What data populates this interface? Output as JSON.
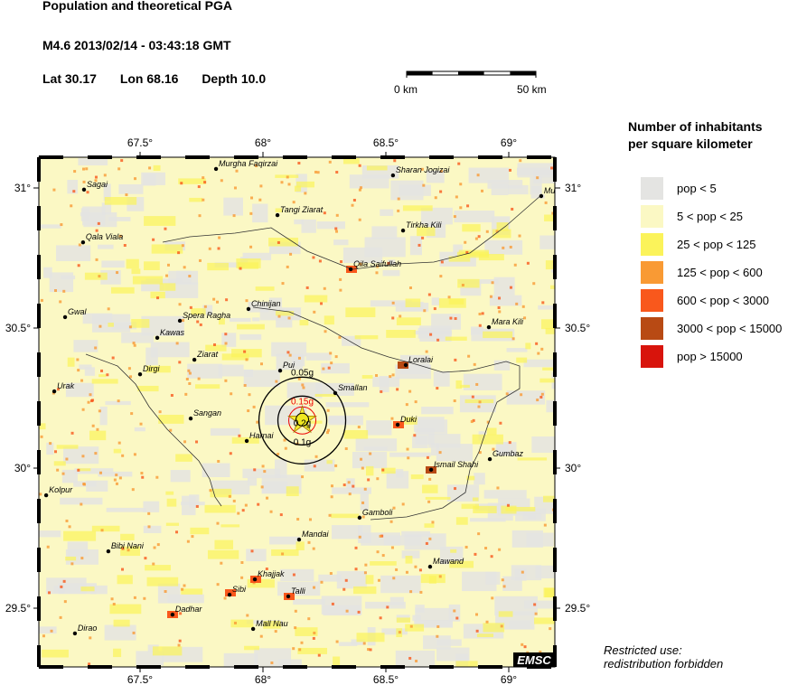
{
  "header": {
    "title": "Population and theoretical PGA",
    "event": "M4.6  2013/02/14 - 03:43:18 GMT",
    "lat": "Lat 30.17",
    "lon": "Lon  68.16",
    "depth": "Depth  10.0"
  },
  "scale_bar": {
    "start_label": "0 km",
    "end_label": "50 km"
  },
  "map": {
    "lon_ticks": [
      {
        "value": 67.5,
        "label": "67.5°"
      },
      {
        "value": 68,
        "label": "68°"
      },
      {
        "value": 68.5,
        "label": "68.5°"
      },
      {
        "value": 69,
        "label": "69°"
      }
    ],
    "lat_ticks": [
      {
        "value": 31,
        "label": "31°"
      },
      {
        "value": 30.5,
        "label": "30.5°"
      },
      {
        "value": 30,
        "label": "30°"
      },
      {
        "value": 29.5,
        "label": "29.5°"
      }
    ],
    "epicenter": {
      "lat": 30.17,
      "lon": 68.16
    },
    "pga_labels": [
      "0.05g",
      "0.1g",
      "0.15g",
      "0.2g"
    ],
    "cities": [
      {
        "name": "Murgha Faqirzai",
        "lon": 67.809,
        "lat": 31.068
      },
      {
        "name": "Sagai",
        "lon": 67.272,
        "lat": 30.994
      },
      {
        "name": "Sharan Jogizai",
        "lon": 68.529,
        "lat": 31.045
      },
      {
        "name": "Mu",
        "lon": 69.132,
        "lat": 30.971
      },
      {
        "name": "Tangi Ziarat",
        "lon": 68.059,
        "lat": 30.903
      },
      {
        "name": "Tirkha Kili",
        "lon": 68.57,
        "lat": 30.848
      },
      {
        "name": "Qala Viala",
        "lon": 67.268,
        "lat": 30.806
      },
      {
        "name": "Qila Saifullah",
        "lon": 68.357,
        "lat": 30.71
      },
      {
        "name": "Chinijan",
        "lon": 67.941,
        "lat": 30.568
      },
      {
        "name": "Gwal",
        "lon": 67.195,
        "lat": 30.539
      },
      {
        "name": "Spera Ragha",
        "lon": 67.662,
        "lat": 30.526
      },
      {
        "name": "Mara Kili",
        "lon": 68.919,
        "lat": 30.503
      },
      {
        "name": "Kawas",
        "lon": 67.57,
        "lat": 30.465
      },
      {
        "name": "Ziarat",
        "lon": 67.721,
        "lat": 30.387
      },
      {
        "name": "Loralai",
        "lon": 68.581,
        "lat": 30.368
      },
      {
        "name": "Pui",
        "lon": 68.07,
        "lat": 30.348
      },
      {
        "name": "Dirgi",
        "lon": 67.5,
        "lat": 30.335
      },
      {
        "name": "Smallan",
        "lon": 68.294,
        "lat": 30.268
      },
      {
        "name": "Urak",
        "lon": 67.151,
        "lat": 30.274
      },
      {
        "name": "Sangan",
        "lon": 67.706,
        "lat": 30.177
      },
      {
        "name": "Duki",
        "lon": 68.548,
        "lat": 30.155
      },
      {
        "name": "Harnai",
        "lon": 67.934,
        "lat": 30.097
      },
      {
        "name": "Gumbaz",
        "lon": 68.923,
        "lat": 30.032
      },
      {
        "name": "Ismail Shahi",
        "lon": 68.684,
        "lat": 29.994
      },
      {
        "name": "Kolpur",
        "lon": 67.118,
        "lat": 29.903
      },
      {
        "name": "Gamboli",
        "lon": 68.393,
        "lat": 29.823
      },
      {
        "name": "Mandai",
        "lon": 68.147,
        "lat": 29.745
      },
      {
        "name": "Bibi Nani",
        "lon": 67.371,
        "lat": 29.703
      },
      {
        "name": "Mawand",
        "lon": 68.68,
        "lat": 29.648
      },
      {
        "name": "Khajjak",
        "lon": 67.967,
        "lat": 29.603
      },
      {
        "name": "Sibi",
        "lon": 67.864,
        "lat": 29.548
      },
      {
        "name": "Talli",
        "lon": 68.103,
        "lat": 29.542
      },
      {
        "name": "Dadhar",
        "lon": 67.632,
        "lat": 29.477
      },
      {
        "name": "Mall Nau",
        "lon": 67.96,
        "lat": 29.426
      },
      {
        "name": "Dirao",
        "lon": 67.235,
        "lat": 29.41
      }
    ],
    "logo": "EMSC"
  },
  "legend": {
    "title_line1": "Number of inhabitants",
    "title_line2": "per square kilometer",
    "items": [
      {
        "label": "pop < 5",
        "color": "#e4e4e2"
      },
      {
        "label": "5 < pop < 25",
        "color": "#fbf8c4"
      },
      {
        "label": "25 < pop < 125",
        "color": "#fbf35a"
      },
      {
        "label": "125 < pop < 600",
        "color": "#f99a34"
      },
      {
        "label": "600 < pop < 3000",
        "color": "#f9581c"
      },
      {
        "label": "3000 < pop < 15000",
        "color": "#b84a14"
      },
      {
        "label": "pop > 15000",
        "color": "#d8140c"
      }
    ]
  },
  "notice": {
    "line1": "Restricted use:",
    "line2": "redistribution forbidden"
  }
}
